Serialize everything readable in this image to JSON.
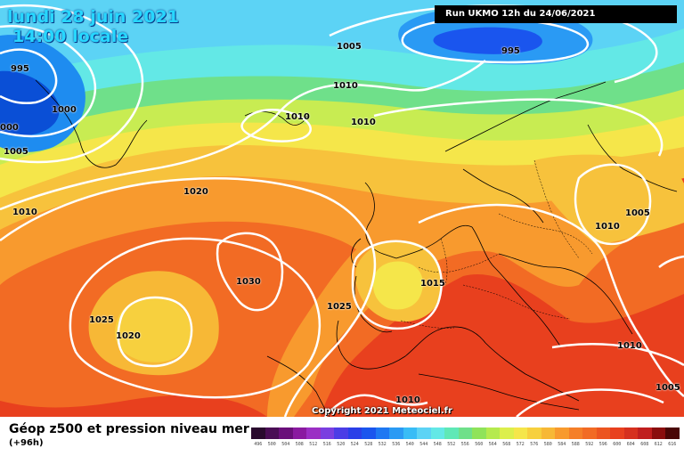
{
  "header": {
    "date_line": "lundi 28 juin 2021",
    "time_line": "14:00 locale",
    "run_label": "Run UKMO 12h du 24/06/2021"
  },
  "map": {
    "copyright": "Copyright 2021 Meteociel.fr",
    "isobar_labels": [
      {
        "text": "995"
      },
      {
        "text": "1000"
      },
      {
        "text": "000"
      },
      {
        "text": "1005"
      },
      {
        "text": "1010"
      },
      {
        "text": "1005"
      },
      {
        "text": "1010"
      },
      {
        "text": "1010"
      },
      {
        "text": "1010"
      },
      {
        "text": "995"
      },
      {
        "text": "1020"
      },
      {
        "text": "1030"
      },
      {
        "text": "1025"
      },
      {
        "text": "1020"
      },
      {
        "text": "1025"
      },
      {
        "text": "1015"
      },
      {
        "text": "1005"
      },
      {
        "text": "1010"
      },
      {
        "text": "1010"
      },
      {
        "text": "1005"
      },
      {
        "text": "1010"
      }
    ],
    "colors": {
      "deep_blue": "#0a4fd6",
      "blue": "#1e8cf0",
      "light_blue": "#5cd3f5",
      "cyan": "#63e8e6",
      "green": "#6fe08a",
      "yellow_green": "#c8ec52",
      "yellow": "#f5e64a",
      "light_orange": "#f7c23c",
      "orange": "#f89a2e",
      "dark_orange": "#f26b24",
      "red": "#e8401e",
      "isobar": "#ffffff"
    }
  },
  "footer": {
    "title": "Géop z500 et pression niveau mer",
    "subtitle": "(+96h)",
    "scale": [
      {
        "label": "496",
        "color": "#2a0a2e"
      },
      {
        "label": "500",
        "color": "#4a0d55"
      },
      {
        "label": "504",
        "color": "#6a0f7a"
      },
      {
        "label": "508",
        "color": "#8a1aa0"
      },
      {
        "label": "512",
        "color": "#9b2fc4"
      },
      {
        "label": "516",
        "color": "#7a3fe0"
      },
      {
        "label": "520",
        "color": "#4b3de6"
      },
      {
        "label": "524",
        "color": "#2a3fe8"
      },
      {
        "label": "528",
        "color": "#1a55ee"
      },
      {
        "label": "532",
        "color": "#1e78f2"
      },
      {
        "label": "536",
        "color": "#2a9af4"
      },
      {
        "label": "540",
        "color": "#38bcf6"
      },
      {
        "label": "544",
        "color": "#5cd3f5"
      },
      {
        "label": "548",
        "color": "#63e8e6"
      },
      {
        "label": "552",
        "color": "#5fe8b6"
      },
      {
        "label": "556",
        "color": "#6fe08a"
      },
      {
        "label": "560",
        "color": "#8fe35a"
      },
      {
        "label": "564",
        "color": "#b5ea4e"
      },
      {
        "label": "568",
        "color": "#dcef4c"
      },
      {
        "label": "572",
        "color": "#f5e64a"
      },
      {
        "label": "576",
        "color": "#f7d03e"
      },
      {
        "label": "580",
        "color": "#f7b836"
      },
      {
        "label": "584",
        "color": "#f89a2e"
      },
      {
        "label": "588",
        "color": "#f57f28"
      },
      {
        "label": "592",
        "color": "#f26b24"
      },
      {
        "label": "596",
        "color": "#ec5520"
      },
      {
        "label": "600",
        "color": "#e8401e"
      },
      {
        "label": "604",
        "color": "#d6301e"
      },
      {
        "label": "608",
        "color": "#c01e1e"
      },
      {
        "label": "612",
        "color": "#8a0e0e"
      },
      {
        "label": "616",
        "color": "#4a0606"
      },
      {
        "label": "",
        "color": "#ffffff"
      }
    ]
  }
}
